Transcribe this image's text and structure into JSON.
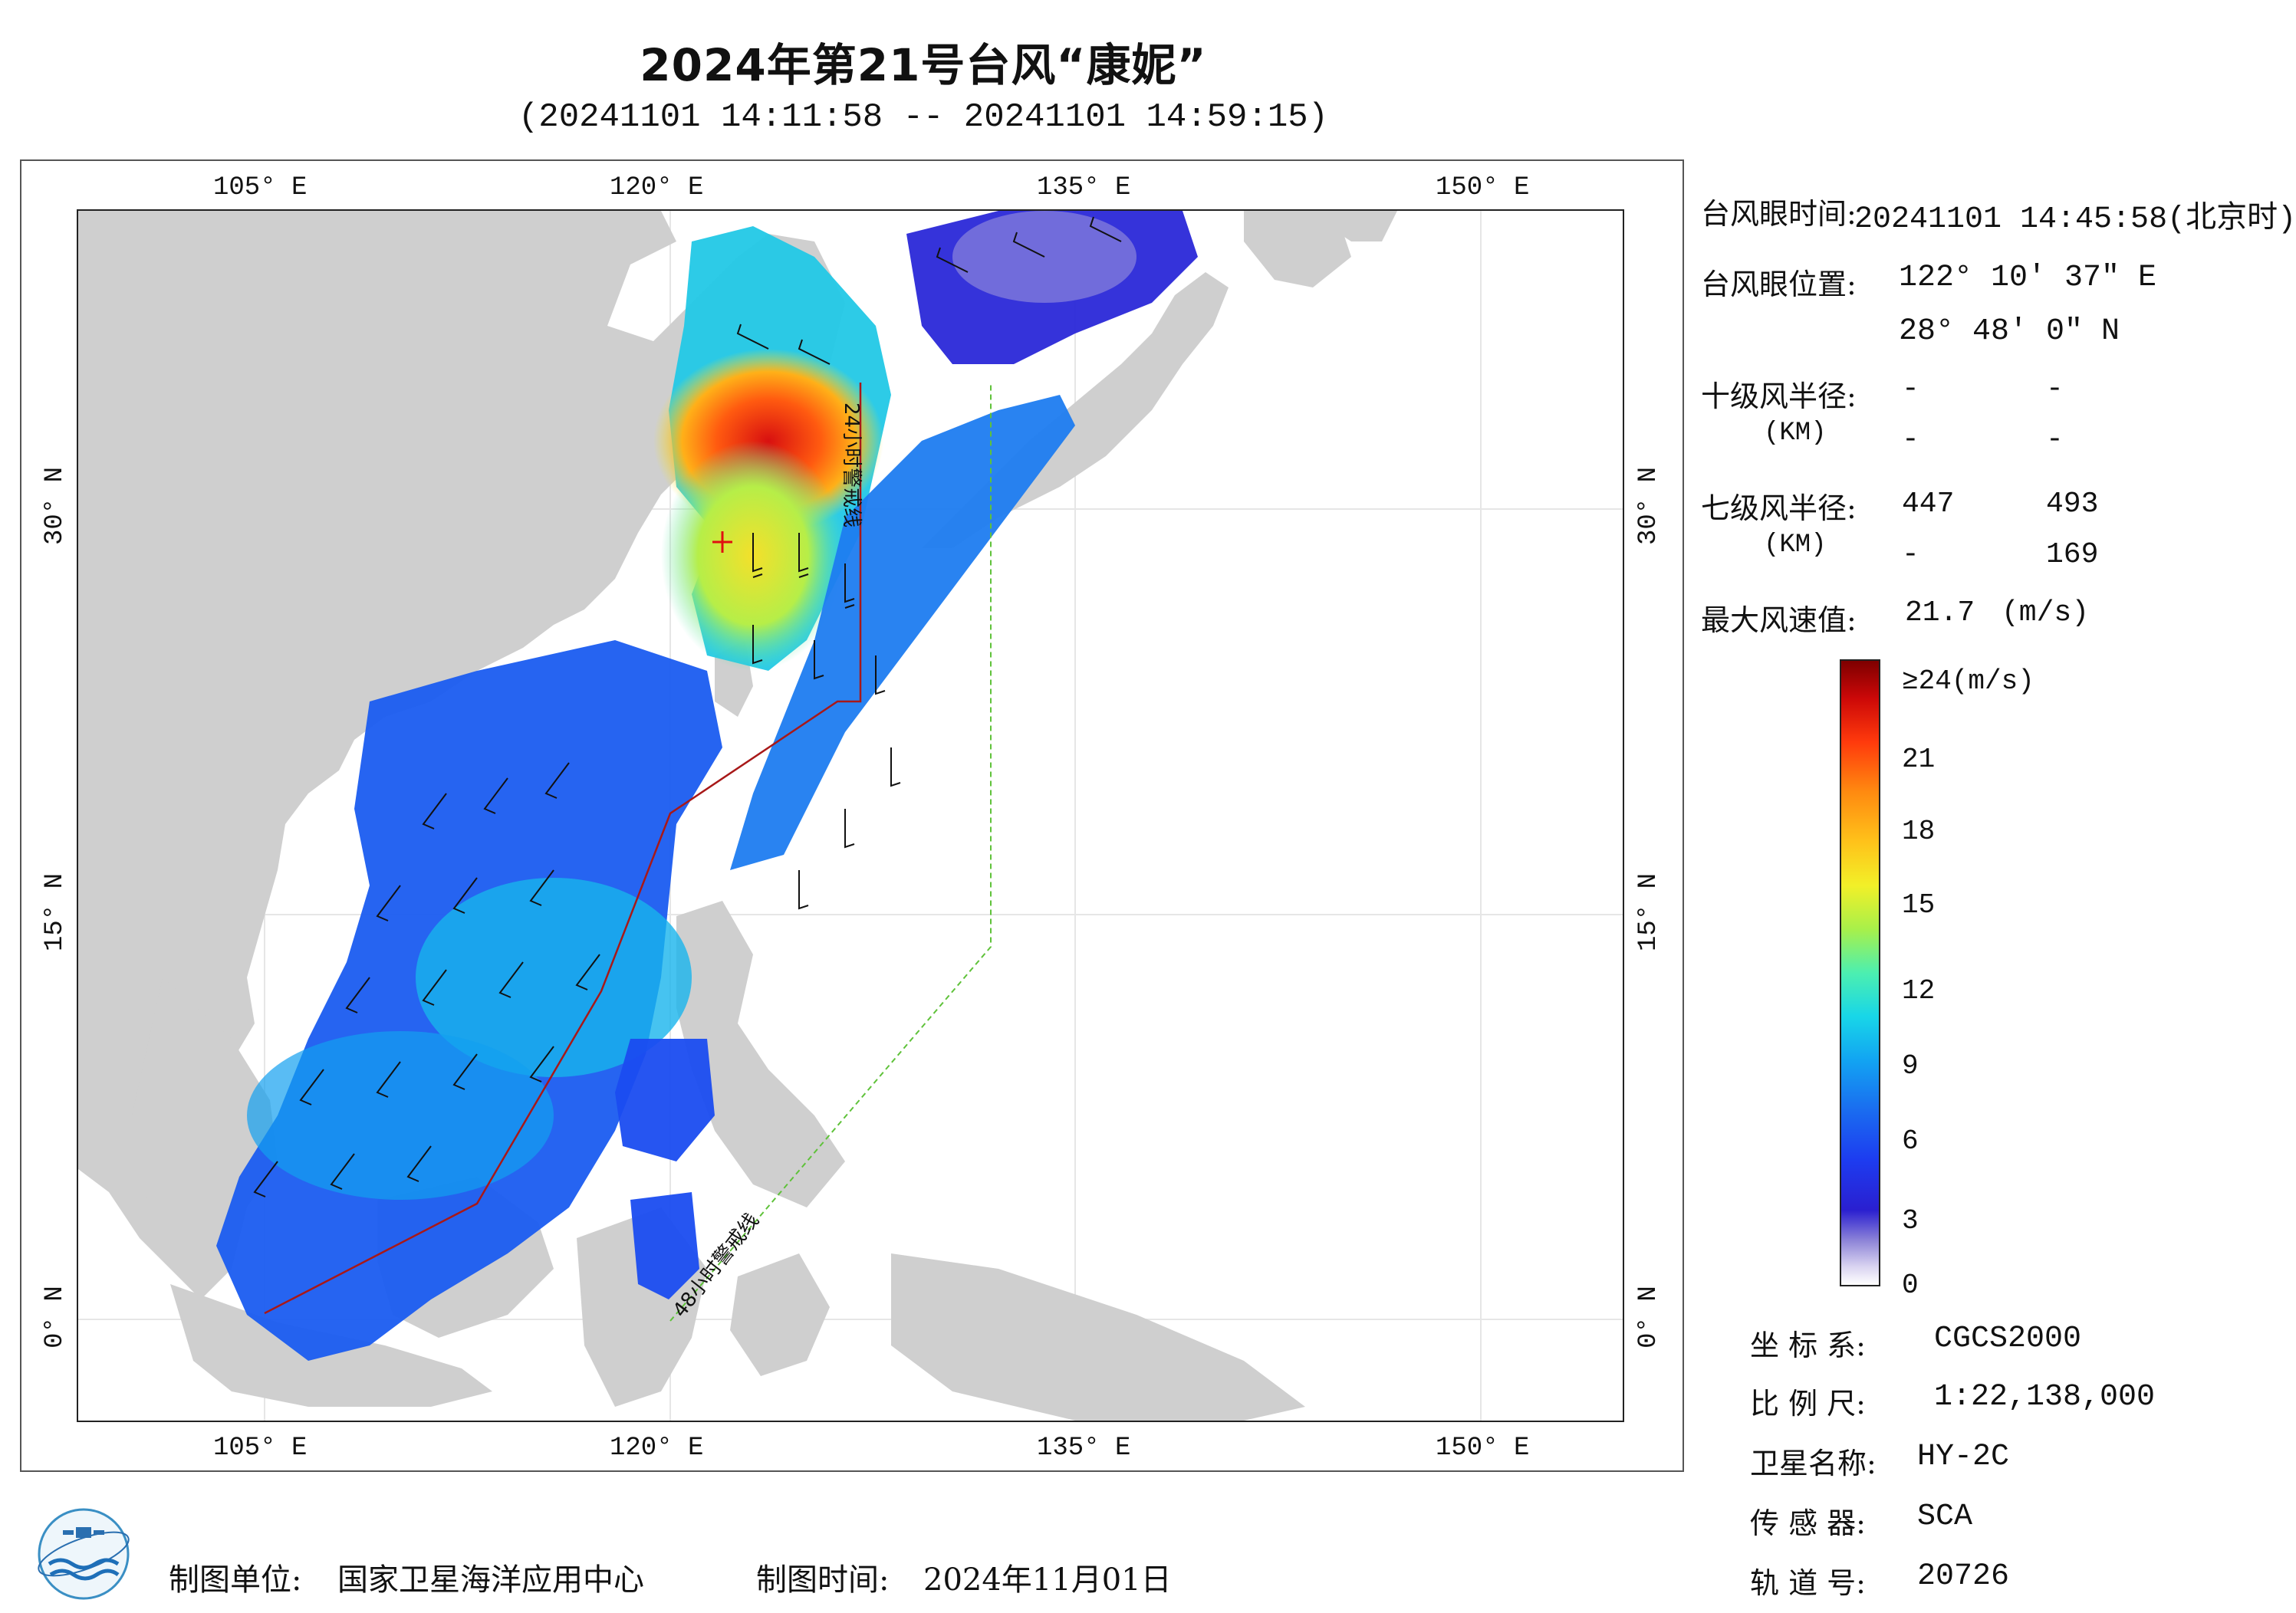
{
  "title": "2024年第21号台风“康妮”",
  "subtitle": "(20241101 14:11:58 -- 20241101 14:59:15)",
  "map": {
    "lon_ticks_top": [
      "105° E",
      "120° E",
      "135° E",
      "150° E"
    ],
    "lon_ticks_bottom": [
      "105° E",
      "120° E",
      "135° E",
      "150° E"
    ],
    "lat_ticks_left": [
      "30° N",
      "15° N",
      "0° N"
    ],
    "lat_ticks_right": [
      "30° N",
      "15° N",
      "0° N"
    ],
    "lon_range": [
      98.2,
      155.2
    ],
    "lat_range": [
      -3.8,
      40.9
    ],
    "warning_line_24h": "24小时警戒线",
    "warning_line_48h": "48小时警戒线",
    "typhoon_eye_lon": 122.18,
    "typhoon_eye_lat": 28.8,
    "colors": {
      "land": "#cfcfcf",
      "sea": "#ffffff",
      "line24": "#a81818",
      "line48": "#5fc23a",
      "eye": "#e01010"
    }
  },
  "info": {
    "eye_time_label": "台风眼时间:",
    "eye_time_value": "20241101 14:45:58(北京时)",
    "eye_pos_label": "台风眼位置:",
    "eye_pos_lon": "122° 10′ 37″ E",
    "eye_pos_lat": "28° 48′ 0″ N",
    "r10_label": "十级风半径:",
    "r10_unit": "(KM)",
    "r10_values": [
      "-",
      "-",
      "-",
      "-"
    ],
    "r7_label": "七级风半径:",
    "r7_unit": "(KM)",
    "r7_values": [
      "447",
      "493",
      "-",
      "169"
    ],
    "max_wind_label": "最大风速值:",
    "max_wind_value": "21.7",
    "max_wind_unit": "(m/s)"
  },
  "colorbar": {
    "labels": [
      "≥24(m/s)",
      "21",
      "18",
      "15",
      "12",
      "9",
      "6",
      "3",
      "0"
    ]
  },
  "meta": {
    "crs_label": "坐 标 系:",
    "crs_value": "CGCS2000",
    "scale_label": "比 例 尺:",
    "scale_value": "1:22,138,000",
    "satellite_label": "卫星名称:",
    "satellite_value": "HY-2C",
    "sensor_label": "传 感 器:",
    "sensor_value": "SCA",
    "orbit_label": "轨 道 号:",
    "orbit_value": "20726"
  },
  "footer": {
    "producer_label": "制图单位:",
    "producer_value": "国家卫星海洋应用中心",
    "date_label": "制图时间:",
    "date_value": "2024年11月01日"
  }
}
